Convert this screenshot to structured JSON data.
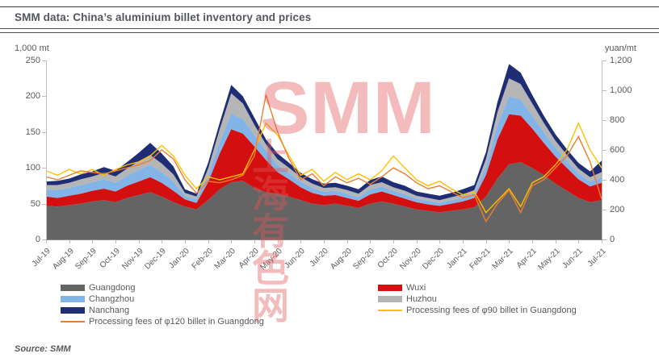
{
  "header": {
    "title": "SMM data: China’s aluminium billet inventory and prices"
  },
  "source": "Source: SMM",
  "watermark": {
    "brand": "SMM",
    "cn": "上海有色网"
  },
  "axes": {
    "left_title": "1,000 mt",
    "right_title": "yuan/mt",
    "left_ticks": [
      "0",
      "50",
      "100",
      "150",
      "200",
      "250"
    ],
    "right_ticks": [
      "0",
      "200",
      "400",
      "600",
      "800",
      "1,000",
      "1,200"
    ]
  },
  "legend": [
    {
      "label": "Guangdong",
      "color": "#646464",
      "type": "area"
    },
    {
      "label": "Wuxi",
      "color": "#D40F0F",
      "type": "area"
    },
    {
      "label": "Changzhou",
      "color": "#82B4E8",
      "type": "area"
    },
    {
      "label": "Huzhou",
      "color": "#B5B5B5",
      "type": "area"
    },
    {
      "label": "Nanchang",
      "color": "#1F2D74",
      "type": "area"
    },
    {
      "label": "Processing fees of φ90 billet in Guangdong",
      "color": "#FFC000",
      "type": "line"
    },
    {
      "label": "Processing fees of φ120 billet in Guangdong",
      "color": "#ED7D31",
      "type": "line"
    }
  ],
  "chart_data": {
    "type": "area",
    "subtype": "stacked-area-with-right-axis-lines",
    "title": "SMM data: China’s aluminium billet inventory and prices",
    "grid": false,
    "legend_position": "bottom",
    "points_per_month": 2,
    "x_tick_labels": [
      "Jul-19",
      "Aug-19",
      "Sep-19",
      "Oct-19",
      "Nov-19",
      "Dec-19",
      "Jan-20",
      "Feb-20",
      "Mar-20",
      "Apr-20",
      "May-20",
      "Jun-20",
      "Jul-20",
      "Aug-20",
      "Sep-20",
      "Oct-20",
      "Nov-20",
      "Dec-20",
      "Jan-21",
      "Feb-21",
      "Mar-21",
      "Apr-21",
      "May-21",
      "Jun-21",
      "Jul-21"
    ],
    "left_axis": {
      "label": "1,000 mt",
      "range": [
        0,
        250
      ],
      "ticks": [
        0,
        50,
        100,
        150,
        200,
        250
      ]
    },
    "right_axis": {
      "label": "yuan/mt",
      "range": [
        0,
        1200
      ],
      "ticks": [
        0,
        200,
        400,
        600,
        800,
        1000,
        1200
      ]
    },
    "stacked_series": [
      {
        "name": "Guangdong",
        "color": "#646464",
        "values": [
          47,
          46,
          48,
          50,
          53,
          55,
          52,
          58,
          62,
          66,
          60,
          52,
          46,
          42,
          55,
          70,
          80,
          82,
          72,
          66,
          64,
          60,
          55,
          50,
          48,
          50,
          47,
          44,
          50,
          53,
          50,
          46,
          42,
          40,
          38,
          40,
          42,
          45,
          60,
          85,
          105,
          108,
          100,
          90,
          78,
          68,
          58,
          52,
          55
        ]
      },
      {
        "name": "Wuxi",
        "color": "#D40F0F",
        "values": [
          13,
          12,
          13,
          14,
          15,
          16,
          15,
          17,
          19,
          21,
          19,
          16,
          10,
          9,
          25,
          50,
          74,
          66,
          58,
          45,
          30,
          24,
          18,
          15,
          13,
          12,
          11,
          10,
          13,
          14,
          12,
          11,
          10,
          9,
          9,
          10,
          11,
          13,
          30,
          55,
          70,
          65,
          55,
          45,
          38,
          32,
          26,
          22,
          24
        ]
      },
      {
        "name": "Changzhou",
        "color": "#82B4E8",
        "values": [
          10,
          11,
          11,
          12,
          12,
          13,
          12,
          14,
          16,
          17,
          15,
          13,
          5,
          5,
          10,
          16,
          22,
          20,
          16,
          13,
          10,
          9,
          8,
          7,
          6,
          6,
          6,
          5,
          7,
          7,
          6,
          6,
          5,
          5,
          4,
          5,
          5,
          6,
          12,
          20,
          25,
          22,
          18,
          15,
          12,
          10,
          8,
          7,
          8
        ]
      },
      {
        "name": "Huzhou",
        "color": "#B5B5B5",
        "values": [
          6,
          7,
          7,
          8,
          8,
          9,
          9,
          10,
          12,
          14,
          12,
          10,
          4,
          4,
          9,
          18,
          28,
          22,
          14,
          9,
          8,
          7,
          6,
          6,
          5,
          5,
          5,
          5,
          6,
          6,
          5,
          5,
          4,
          4,
          4,
          4,
          5,
          5,
          10,
          18,
          25,
          22,
          17,
          13,
          10,
          8,
          7,
          6,
          7
        ]
      },
      {
        "name": "Nanchang",
        "color": "#1F2D74",
        "values": [
          5,
          6,
          6,
          7,
          7,
          8,
          8,
          9,
          12,
          17,
          14,
          11,
          5,
          4,
          8,
          9,
          12,
          10,
          10,
          7,
          8,
          7,
          6,
          6,
          6,
          6,
          6,
          6,
          7,
          8,
          7,
          7,
          6,
          6,
          6,
          6,
          7,
          7,
          10,
          14,
          20,
          16,
          12,
          10,
          9,
          8,
          8,
          8,
          16
        ]
      }
    ],
    "line_series": [
      {
        "name": "Processing fees of φ90 billet in Guangdong",
        "color": "#FFC000",
        "axis": "right",
        "values": [
          460,
          430,
          470,
          440,
          470,
          430,
          470,
          500,
          520,
          560,
          630,
          560,
          430,
          340,
          420,
          400,
          420,
          440,
          600,
          780,
          700,
          560,
          430,
          470,
          390,
          450,
          400,
          440,
          400,
          460,
          560,
          480,
          400,
          360,
          390,
          340,
          300,
          320,
          180,
          260,
          340,
          220,
          380,
          420,
          500,
          600,
          780,
          600,
          480
        ]
      },
      {
        "name": "Processing fees of φ120 billet in Guangdong",
        "color": "#ED7D31",
        "axis": "right",
        "values": [
          420,
          400,
          430,
          460,
          450,
          440,
          460,
          480,
          500,
          530,
          600,
          540,
          400,
          310,
          390,
          380,
          400,
          430,
          560,
          970,
          720,
          540,
          400,
          440,
          360,
          420,
          380,
          410,
          370,
          420,
          480,
          440,
          380,
          340,
          360,
          320,
          280,
          300,
          120,
          240,
          330,
          180,
          360,
          400,
          480,
          560,
          690,
          520,
          270
        ]
      }
    ]
  }
}
